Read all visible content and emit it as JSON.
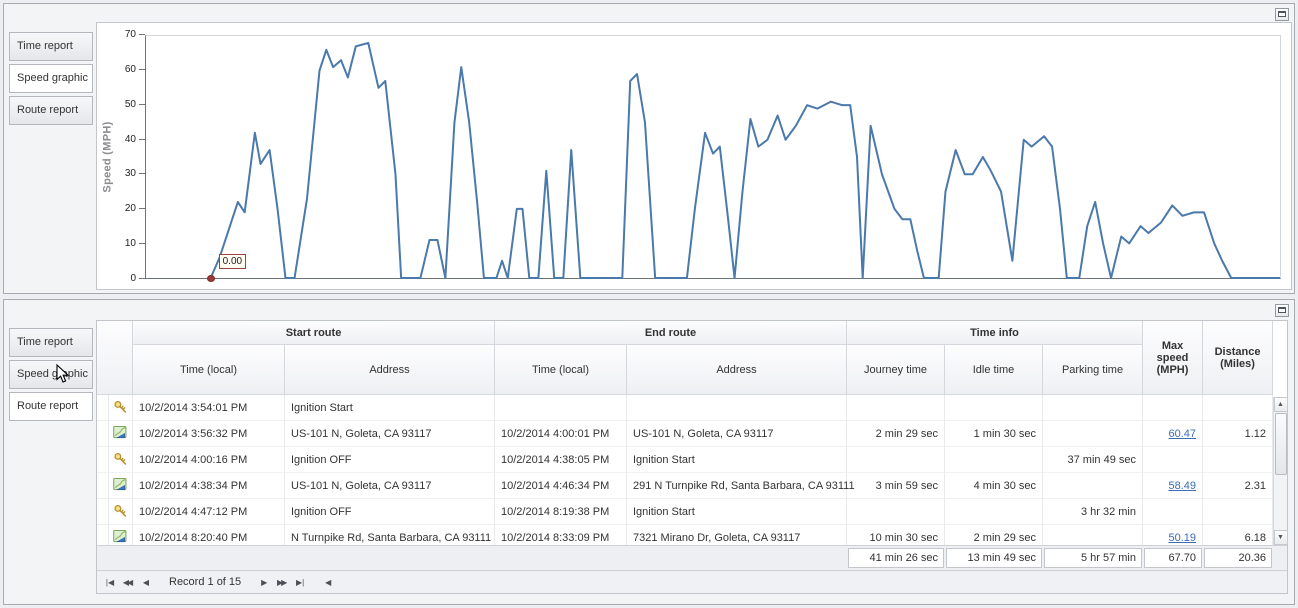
{
  "window": {
    "top_panel": {
      "tabs": [
        {
          "label": "Time report"
        },
        {
          "label": "Speed graphic"
        },
        {
          "label": "Route report"
        }
      ],
      "active_tab": "Speed graphic"
    },
    "bottom_panel": {
      "tabs": [
        {
          "label": "Time report"
        },
        {
          "label": "Speed graphic"
        },
        {
          "label": "Route report"
        }
      ],
      "active_tab": "Route report"
    }
  },
  "chart_data": {
    "type": "line",
    "title": "",
    "xlabel": "",
    "ylabel": "Speed (MPH)",
    "ylim": [
      0,
      70
    ],
    "yticks": [
      0,
      10,
      20,
      30,
      40,
      50,
      60,
      70
    ],
    "grid": false,
    "legend": false,
    "line_color": "#4a79ab",
    "marker": {
      "x": 5.7,
      "y": 0,
      "color": "#9c3a36",
      "label": "0.00"
    },
    "x_unit": "percent_of_timeline",
    "series": [
      {
        "name": "Speed (MPH)",
        "points": [
          [
            5.7,
            0
          ],
          [
            6.5,
            6
          ],
          [
            8.1,
            22
          ],
          [
            8.7,
            19
          ],
          [
            9.6,
            42
          ],
          [
            10.1,
            33
          ],
          [
            10.9,
            37
          ],
          [
            11.6,
            20
          ],
          [
            12.3,
            0
          ],
          [
            13.1,
            0
          ],
          [
            14.2,
            23
          ],
          [
            15.3,
            60
          ],
          [
            15.9,
            66
          ],
          [
            16.5,
            61
          ],
          [
            17.2,
            63
          ],
          [
            17.8,
            58
          ],
          [
            18.5,
            67
          ],
          [
            19.6,
            68
          ],
          [
            20.5,
            55
          ],
          [
            21.1,
            57
          ],
          [
            22.0,
            30
          ],
          [
            22.5,
            0
          ],
          [
            24.2,
            0
          ],
          [
            25.0,
            11
          ],
          [
            25.7,
            11
          ],
          [
            26.4,
            0
          ],
          [
            27.2,
            45
          ],
          [
            27.8,
            61
          ],
          [
            28.5,
            45
          ],
          [
            29.2,
            22
          ],
          [
            29.8,
            0
          ],
          [
            30.9,
            0
          ],
          [
            31.4,
            5
          ],
          [
            31.9,
            0
          ],
          [
            32.7,
            20
          ],
          [
            33.2,
            20
          ],
          [
            33.8,
            0
          ],
          [
            34.6,
            0
          ],
          [
            35.3,
            31
          ],
          [
            36.0,
            0
          ],
          [
            36.8,
            0
          ],
          [
            37.5,
            37
          ],
          [
            38.3,
            0
          ],
          [
            42.0,
            0
          ],
          [
            42.7,
            57
          ],
          [
            43.3,
            59
          ],
          [
            44.0,
            45
          ],
          [
            44.9,
            0
          ],
          [
            47.7,
            0
          ],
          [
            48.4,
            20
          ],
          [
            49.3,
            42
          ],
          [
            50.0,
            36
          ],
          [
            50.6,
            38
          ],
          [
            51.3,
            18
          ],
          [
            51.9,
            0
          ],
          [
            52.6,
            25
          ],
          [
            53.3,
            46
          ],
          [
            54.0,
            38
          ],
          [
            54.8,
            40
          ],
          [
            55.7,
            47
          ],
          [
            56.4,
            40
          ],
          [
            57.3,
            44
          ],
          [
            58.3,
            50
          ],
          [
            59.2,
            49
          ],
          [
            60.4,
            51
          ],
          [
            61.4,
            50
          ],
          [
            62.1,
            50
          ],
          [
            62.7,
            35
          ],
          [
            63.2,
            0
          ],
          [
            63.9,
            44
          ],
          [
            64.9,
            30
          ],
          [
            66.0,
            20
          ],
          [
            66.7,
            17
          ],
          [
            67.4,
            17
          ],
          [
            68.0,
            8
          ],
          [
            68.6,
            0
          ],
          [
            69.9,
            0
          ],
          [
            70.5,
            25
          ],
          [
            71.4,
            37
          ],
          [
            72.2,
            30
          ],
          [
            72.9,
            30
          ],
          [
            73.8,
            35
          ],
          [
            74.5,
            31
          ],
          [
            75.4,
            25
          ],
          [
            75.9,
            15
          ],
          [
            76.4,
            5
          ],
          [
            77.4,
            40
          ],
          [
            78.1,
            38
          ],
          [
            79.2,
            41
          ],
          [
            79.9,
            38
          ],
          [
            80.6,
            20
          ],
          [
            81.2,
            0
          ],
          [
            82.3,
            0
          ],
          [
            83.0,
            15
          ],
          [
            83.7,
            22
          ],
          [
            84.4,
            10
          ],
          [
            85.1,
            0
          ],
          [
            86.0,
            12
          ],
          [
            86.7,
            10
          ],
          [
            87.7,
            15
          ],
          [
            88.4,
            13
          ],
          [
            89.5,
            16
          ],
          [
            90.5,
            21
          ],
          [
            91.4,
            18
          ],
          [
            92.4,
            19
          ],
          [
            93.3,
            19
          ],
          [
            94.2,
            10
          ],
          [
            94.9,
            5
          ],
          [
            95.7,
            0
          ],
          [
            100,
            0
          ]
        ]
      }
    ]
  },
  "grid": {
    "column_groups": [
      {
        "label": "Start route",
        "span": 2
      },
      {
        "label": "End route",
        "span": 2
      },
      {
        "label": "Time info",
        "span": 3
      }
    ],
    "columns": [
      "Time (local)",
      "Address",
      "Time (local)",
      "Address",
      "Journey time",
      "Idle time",
      "Parking time"
    ],
    "span_columns": [
      "Max speed (MPH)",
      "Distance (Miles)"
    ],
    "rows": [
      {
        "icon": "key",
        "start_time": "10/2/2014 3:54:01 PM",
        "start_address": "Ignition Start",
        "end_time": "",
        "end_address": "",
        "journey_time": "",
        "idle_time": "",
        "parking_time": "",
        "max_speed": "",
        "max_speed_link": false,
        "distance": ""
      },
      {
        "icon": "route",
        "start_time": "10/2/2014 3:56:32 PM",
        "start_address": "US-101 N, Goleta, CA 93117",
        "end_time": "10/2/2014 4:00:01 PM",
        "end_address": "US-101 N, Goleta, CA 93117",
        "journey_time": "2 min 29 sec",
        "idle_time": "1 min 30 sec",
        "parking_time": "",
        "max_speed": "60.47",
        "max_speed_link": true,
        "distance": "1.12"
      },
      {
        "icon": "key",
        "start_time": "10/2/2014 4:00:16 PM",
        "start_address": "Ignition OFF",
        "end_time": "10/2/2014 4:38:05 PM",
        "end_address": "Ignition Start",
        "journey_time": "",
        "idle_time": "",
        "parking_time": "37 min 49 sec",
        "max_speed": "",
        "max_speed_link": false,
        "distance": ""
      },
      {
        "icon": "route",
        "start_time": "10/2/2014 4:38:34 PM",
        "start_address": "US-101 N, Goleta, CA 93117",
        "end_time": "10/2/2014 4:46:34 PM",
        "end_address": "291 N Turnpike Rd, Santa Barbara, CA 93111",
        "journey_time": "3 min 59 sec",
        "idle_time": "4 min 30 sec",
        "parking_time": "",
        "max_speed": "58.49",
        "max_speed_link": true,
        "distance": "2.31"
      },
      {
        "icon": "key",
        "start_time": "10/2/2014 4:47:12 PM",
        "start_address": "Ignition OFF",
        "end_time": "10/2/2014 8:19:38 PM",
        "end_address": "Ignition Start",
        "journey_time": "",
        "idle_time": "",
        "parking_time": "3 hr 32 min",
        "max_speed": "",
        "max_speed_link": false,
        "distance": ""
      },
      {
        "icon": "route",
        "start_time": "10/2/2014 8:20:40 PM",
        "start_address": "N Turnpike Rd, Santa Barbara, CA 93111",
        "end_time": "10/2/2014 8:33:09 PM",
        "end_address": "7321 Mirano Dr, Goleta, CA 93117",
        "journey_time": "10 min 30 sec",
        "idle_time": "2 min 29 sec",
        "parking_time": "",
        "max_speed": "50.19",
        "max_speed_link": true,
        "distance": "6.18"
      }
    ],
    "summary": {
      "journey_time": "41 min 26 sec",
      "idle_time": "13 min 49 sec",
      "parking_time": "5 hr 57 min",
      "max_speed": "67.70",
      "distance": "20.36"
    },
    "pager": {
      "label": "Record 1 of 15",
      "buttons_left": [
        "first",
        "prev-page",
        "prev"
      ],
      "buttons_right": [
        "next",
        "next-page",
        "last"
      ],
      "hscroll_left": "scroll-left"
    }
  }
}
